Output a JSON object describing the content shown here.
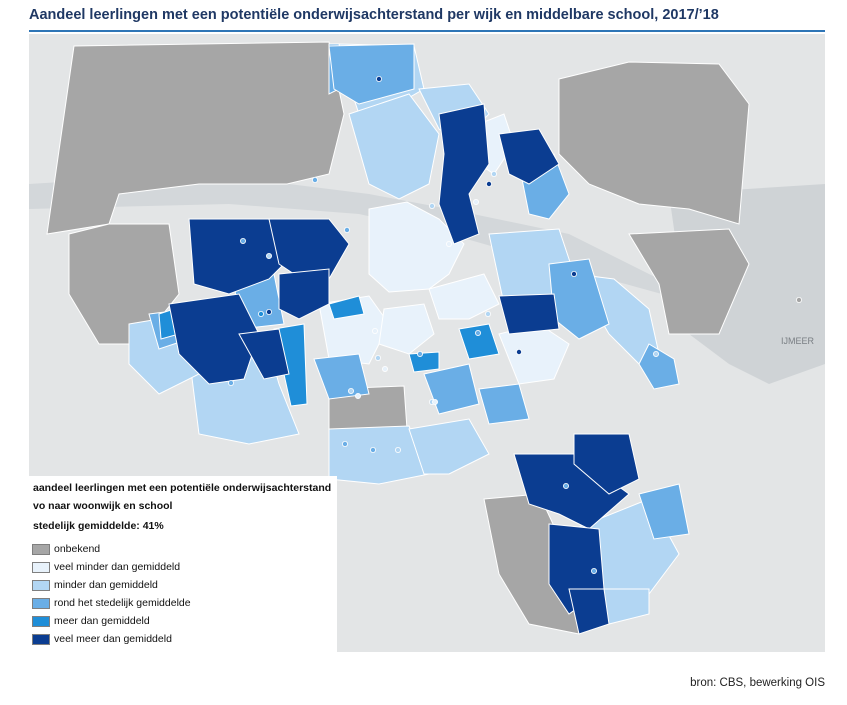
{
  "title": "Aandeel leerlingen met een potentiële onderwijsachterstand per wijk en middelbare school, 2017/’18",
  "legend": {
    "title_line1": "aandeel leerlingen met een potentiële onderwijsachterstand",
    "title_line2": "vo naar woonwijk en school",
    "average": "stedelijk gemiddelde: 41%",
    "items": [
      {
        "label": "onbekend",
        "color": "#a6a6a6"
      },
      {
        "label": "veel minder dan gemiddeld",
        "color": "#e8f2fb"
      },
      {
        "label": "minder dan gemiddeld",
        "color": "#b2d6f3"
      },
      {
        "label": "rond het stedelijk gemiddelde",
        "color": "#6aaee6"
      },
      {
        "label": "meer dan gemiddeld",
        "color": "#1f8ed8"
      },
      {
        "label": "veel meer dan gemiddeld",
        "color": "#0b3d91"
      }
    ]
  },
  "map_labels": {
    "ijmeer": "IJMEER"
  },
  "source": "bron: CBS, bewerking OIS",
  "colors": {
    "title": "#1f3864",
    "rule": "#2e75b6",
    "background_map": "#e7e9ea",
    "water": "#c9cdd0",
    "school_dot": "#9fd1f5"
  }
}
